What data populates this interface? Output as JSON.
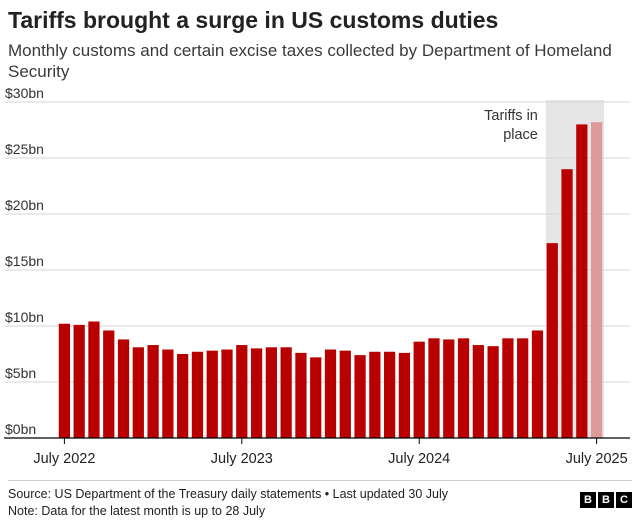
{
  "header": {
    "title": "Tariffs brought a surge in US customs duties",
    "subtitle": "Monthly customs and certain excise taxes collected by Department of Homeland Security"
  },
  "chart_data": {
    "type": "bar",
    "title": "Tariffs brought a surge in US customs duties",
    "subtitle": "Monthly customs and certain excise taxes collected by Department of Homeland Security",
    "xlabel": "",
    "ylabel": "",
    "unit": "$bn",
    "ylim": [
      0,
      30
    ],
    "y_ticks": [
      0,
      5,
      10,
      15,
      20,
      25,
      30
    ],
    "y_tick_labels": [
      "$0bn",
      "$5bn",
      "$10bn",
      "$15bn",
      "$20bn",
      "$25bn",
      "$30bn"
    ],
    "x_tick_labels": [
      {
        "label": "July 2022",
        "index": 0
      },
      {
        "label": "July 2023",
        "index": 12
      },
      {
        "label": "July 2024",
        "index": 24
      },
      {
        "label": "July 2025",
        "index": 36
      }
    ],
    "categories": [
      "Jul 2022",
      "Aug 2022",
      "Sep 2022",
      "Oct 2022",
      "Nov 2022",
      "Dec 2022",
      "Jan 2023",
      "Feb 2023",
      "Mar 2023",
      "Apr 2023",
      "May 2023",
      "Jun 2023",
      "Jul 2023",
      "Aug 2023",
      "Sep 2023",
      "Oct 2023",
      "Nov 2023",
      "Dec 2023",
      "Jan 2024",
      "Feb 2024",
      "Mar 2024",
      "Apr 2024",
      "May 2024",
      "Jun 2024",
      "Jul 2024",
      "Aug 2024",
      "Sep 2024",
      "Oct 2024",
      "Nov 2024",
      "Dec 2024",
      "Jan 2025",
      "Feb 2025",
      "Mar 2025",
      "Apr 2025",
      "May 2025",
      "Jun 2025",
      "Jul 2025"
    ],
    "values": [
      10.2,
      10.1,
      10.4,
      9.6,
      8.8,
      8.1,
      8.3,
      7.9,
      7.5,
      7.7,
      7.8,
      7.9,
      8.3,
      8.0,
      8.1,
      8.1,
      7.6,
      7.2,
      7.9,
      7.8,
      7.4,
      7.7,
      7.7,
      7.6,
      8.6,
      8.9,
      8.8,
      8.9,
      8.3,
      8.2,
      8.9,
      8.9,
      9.6,
      17.4,
      24.0,
      28.0,
      28.2
    ],
    "partial_month": "Jul 2025",
    "highlight": {
      "from": "Apr 2025",
      "to": "Jul 2025",
      "label_lines": [
        "Tariffs in",
        "place"
      ]
    },
    "colors": {
      "bar": "#b80000",
      "bar_partial": "#dd9a9a",
      "highlight": "#e6e6e6",
      "grid": "#d6d6d6",
      "axis": "#000000"
    }
  },
  "footer": {
    "source": "Source: US Department of the Treasury daily statements • Last updated 30 July",
    "note": "Note: Data for the latest month is up to 28 July"
  },
  "logo": {
    "letters": [
      "B",
      "B",
      "C"
    ]
  }
}
